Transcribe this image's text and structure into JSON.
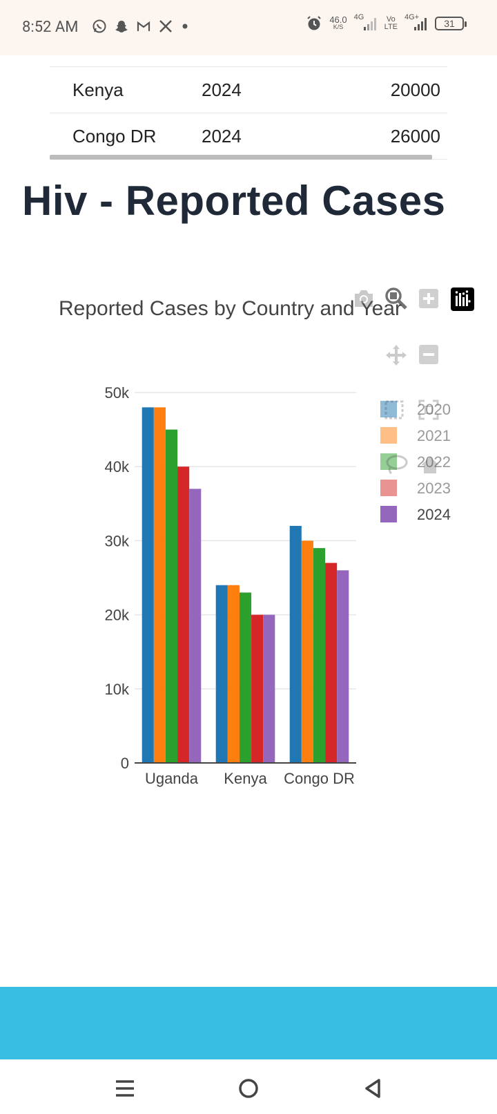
{
  "status_bar": {
    "time": "8:52 AM",
    "net_speed_value": "46.0",
    "net_speed_unit": "K/S",
    "net_4g": "4G",
    "volte_top": "Vo",
    "volte_bottom": "LTE",
    "net_4g_plus": "4G+",
    "battery": "31"
  },
  "table": {
    "rows": [
      {
        "country": "Kenya",
        "year": "2024",
        "cases": "20000"
      },
      {
        "country": "Congo DR",
        "year": "2024",
        "cases": "26000"
      }
    ]
  },
  "page": {
    "title": "Hiv - Reported Cases"
  },
  "modebar": {
    "icons": [
      "camera-icon",
      "zoom-icon",
      "zoom-in-icon",
      "plotly-logo-icon",
      "pan-icon",
      "zoom-out-icon",
      "box-select-icon",
      "autoscale-icon",
      "lasso-icon",
      "home-icon"
    ]
  },
  "chart_data": {
    "type": "bar",
    "title": "Reported Cases by Country and Year",
    "categories": [
      "Uganda",
      "Kenya",
      "Congo DR"
    ],
    "series": [
      {
        "name": "2020",
        "color": "#1f77b4",
        "values": [
          48000,
          24000,
          32000
        ]
      },
      {
        "name": "2021",
        "color": "#ff7f0e",
        "values": [
          48000,
          24000,
          30000
        ]
      },
      {
        "name": "2022",
        "color": "#2ca02c",
        "values": [
          45000,
          23000,
          29000
        ]
      },
      {
        "name": "2023",
        "color": "#d62728",
        "values": [
          40000,
          20000,
          27000
        ]
      },
      {
        "name": "2024",
        "color": "#9467bd",
        "values": [
          37000,
          20000,
          26000
        ]
      }
    ],
    "ylim": [
      0,
      50000
    ],
    "yticks": [
      {
        "value": 0,
        "label": "0"
      },
      {
        "value": 10000,
        "label": "10k"
      },
      {
        "value": 20000,
        "label": "20k"
      },
      {
        "value": 30000,
        "label": "30k"
      },
      {
        "value": 40000,
        "label": "40k"
      },
      {
        "value": 50000,
        "label": "50k"
      }
    ],
    "grid": true,
    "legend_position": "right"
  },
  "colors": {
    "bottom_band": "#38bde3"
  }
}
